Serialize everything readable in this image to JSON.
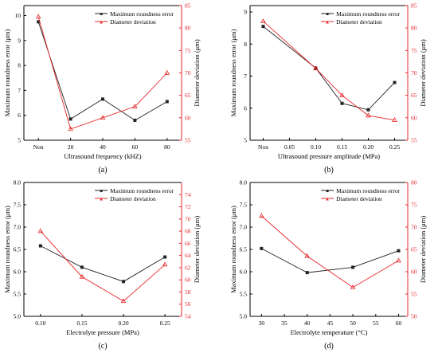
{
  "figure": {
    "legend": {
      "marker_square": "■",
      "marker_triangle": "▲"
    },
    "colors": {
      "left_axis": "#000000",
      "right_axis": "#e8262a",
      "series_1": "#222222",
      "series_2": "#e8262a"
    }
  },
  "chart_data": [
    {
      "type": "line",
      "panel_label": "(a)",
      "xlabel": "Ultrasound frequency (kHZ)",
      "ylabel_left": "Maximum roundness error (μm)",
      "ylabel_right": "Diameter deviation (μm)",
      "x_tick_labels": [
        "Non",
        "20",
        "40",
        "60",
        "80"
      ],
      "x": [
        0,
        1,
        2,
        3,
        4
      ],
      "xlim": [
        -0.45,
        4.45
      ],
      "ylim_left": [
        5,
        10.4
      ],
      "ylim_right": [
        55,
        85
      ],
      "y_ticks_left": [
        "5",
        "6",
        "7",
        "8",
        "9",
        "10"
      ],
      "y_ticks_right": [
        "55",
        "60",
        "65",
        "70",
        "75",
        "80",
        "85"
      ],
      "series": [
        {
          "name": "Maximum roundness error",
          "axis": "left",
          "marker": "square",
          "values": [
            9.75,
            5.85,
            6.65,
            5.8,
            6.55
          ]
        },
        {
          "name": "Diameter deviation",
          "axis": "right",
          "marker": "triangle",
          "values": [
            82.5,
            57.5,
            60.0,
            62.5,
            70.0
          ]
        }
      ],
      "legend_position": "top-right"
    },
    {
      "type": "line",
      "panel_label": "(b)",
      "xlabel": "Ultrasound pressure amplitude (MPa)",
      "ylabel_left": "Maximum roundness error (μm)",
      "ylabel_right": "Diameter deviation (μm)",
      "x_tick_labels": [
        "Non",
        "0.05",
        "0.10",
        "0.15",
        "0.20",
        "0.25"
      ],
      "x": [
        0,
        2,
        3,
        4,
        5
      ],
      "xlim": [
        -0.5,
        5.5
      ],
      "ylim_left": [
        5,
        9.2
      ],
      "ylim_right": [
        55,
        85
      ],
      "y_ticks_left": [
        "5",
        "6",
        "7",
        "8",
        "9"
      ],
      "y_ticks_right": [
        "55",
        "60",
        "65",
        "70",
        "75",
        "80",
        "85"
      ],
      "series": [
        {
          "name": "Maximum roundness error",
          "axis": "left",
          "marker": "square",
          "values": [
            8.55,
            7.25,
            6.15,
            5.95,
            6.8
          ]
        },
        {
          "name": "Diameter deviation",
          "axis": "right",
          "marker": "triangle",
          "values": [
            81.5,
            71.0,
            65.0,
            60.5,
            59.5
          ]
        }
      ],
      "legend_position": "top-right"
    },
    {
      "type": "line",
      "panel_label": "(c)",
      "xlabel": "Electrolyte pressure (MPa)",
      "ylabel_left": "Maximum roundness error (μm)",
      "ylabel_right": "Diameter deviation (μm)",
      "x_tick_labels": [
        "0.10",
        "0.15",
        "0.20",
        "0.25"
      ],
      "x": [
        0.1,
        0.15,
        0.2,
        0.25
      ],
      "xlim": [
        0.08,
        0.27
      ],
      "ylim_left": [
        5.0,
        8.0
      ],
      "ylim_right": [
        54,
        76
      ],
      "y_ticks_left": [
        "5.0",
        "5.5",
        "6.0",
        "6.5",
        "7.0",
        "7.5",
        "8.0"
      ],
      "y_ticks_right": [
        "54",
        "56",
        "58",
        "60",
        "62",
        "64",
        "66",
        "68",
        "70",
        "72",
        "74"
      ],
      "series": [
        {
          "name": "Maximum roundness error",
          "axis": "left",
          "marker": "square",
          "values": [
            6.58,
            6.1,
            5.78,
            6.33
          ]
        },
        {
          "name": "Diameter deviation",
          "axis": "right",
          "marker": "triangle",
          "values": [
            68.0,
            60.5,
            56.5,
            62.5
          ]
        }
      ],
      "legend_position": "top-right"
    },
    {
      "type": "line",
      "panel_label": "(d)",
      "xlabel": "Electrolyte temperature (°C)",
      "ylabel_left": "Maximum roundness error (μm)",
      "ylabel_right": "Diameter deviation (μm)",
      "x_tick_labels": [
        "30",
        "35",
        "40",
        "45",
        "50",
        "55",
        "60"
      ],
      "x": [
        30,
        40,
        50,
        60
      ],
      "xlim": [
        27.5,
        62
      ],
      "ylim_left": [
        5.0,
        8.0
      ],
      "ylim_right": [
        50,
        80
      ],
      "y_ticks_left": [
        "5.0",
        "5.5",
        "6.0",
        "6.5",
        "7.0",
        "7.5",
        "8.0"
      ],
      "y_ticks_right": [
        "50",
        "55",
        "60",
        "65",
        "70",
        "75",
        "80"
      ],
      "series": [
        {
          "name": "Maximum roundness error",
          "axis": "left",
          "marker": "square",
          "values": [
            6.52,
            5.98,
            6.1,
            6.47
          ]
        },
        {
          "name": "Diameter deviation",
          "axis": "right",
          "marker": "triangle",
          "values": [
            72.5,
            63.5,
            56.5,
            62.5
          ]
        }
      ],
      "legend_position": "top-right"
    }
  ]
}
